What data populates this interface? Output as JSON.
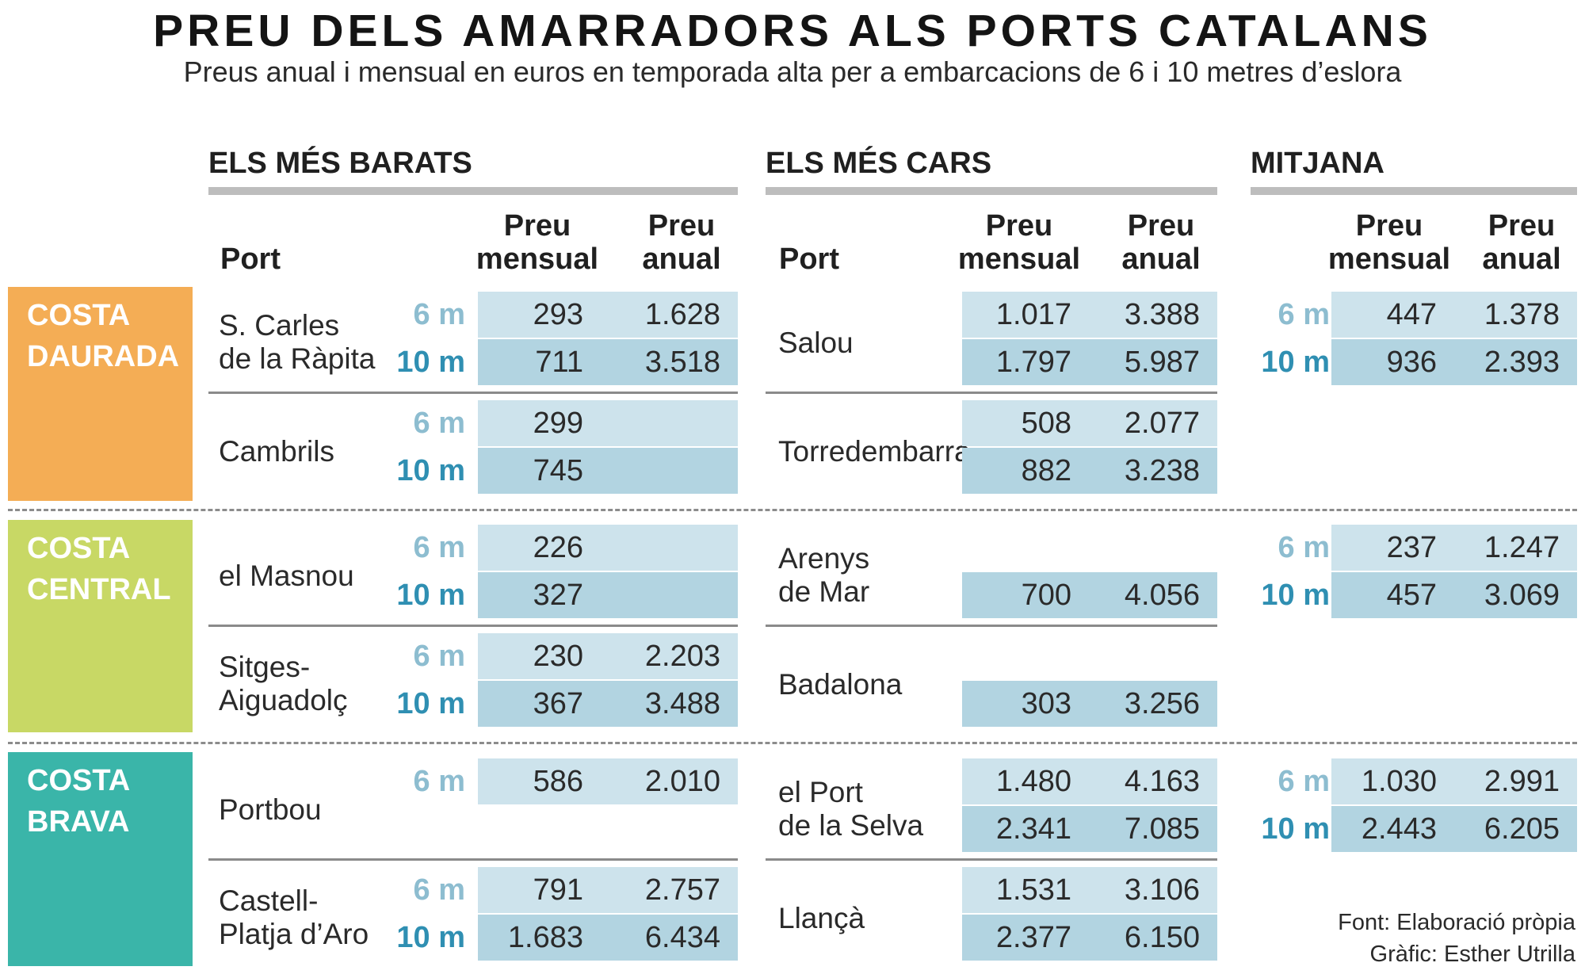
{
  "title": "PREU DELS AMARRADORS ALS PORTS CATALANS",
  "subtitle": "Preus anual i mensual en euros en temporada alta per a embarcacions de 6 i 10 metres d’eslora",
  "sections": {
    "cheapest": "ELS MÉS BARATS",
    "expensive": "ELS MÉS CARS",
    "average": "MITJANA"
  },
  "headers": {
    "port": "Port",
    "monthly_1": "Preu",
    "monthly_2": "mensual",
    "annual_1": "Preu",
    "annual_2": "anual"
  },
  "sizes": {
    "s6": "6 m",
    "s10": "10 m"
  },
  "regions": [
    {
      "name_1": "COSTA",
      "name_2": "DAURADA",
      "color": "#f4ad55"
    },
    {
      "name_1": "COSTA",
      "name_2": "CENTRAL",
      "color": "#c8d865"
    },
    {
      "name_1": "COSTA",
      "name_2": "BRAVA",
      "color": "#3ab5a9"
    }
  ],
  "chart_data": {
    "type": "table",
    "title": "PREU DELS AMARRADORS ALS PORTS CATALANS",
    "subtitle": "Preus anual i mensual en euros en temporada alta per a embarcacions de 6 i 10 metres d’eslora",
    "columns": [
      "Preu mensual",
      "Preu anual"
    ],
    "rows": [
      {
        "region": "COSTA DAURADA",
        "group": "ELS MÉS BARATS",
        "port_1": "S. Carles",
        "port_2": "de la Ràpita",
        "m6": "293",
        "a6": "1.628",
        "m10": "711",
        "a10": "3.518"
      },
      {
        "region": "COSTA DAURADA",
        "group": "ELS MÉS BARATS",
        "port_1": "Cambrils",
        "port_2": "",
        "m6": "299",
        "a6": "",
        "m10": "745",
        "a10": ""
      },
      {
        "region": "COSTA DAURADA",
        "group": "ELS MÉS CARS",
        "port_1": "Salou",
        "port_2": "",
        "m6": "1.017",
        "a6": "3.388",
        "m10": "1.797",
        "a10": "5.987"
      },
      {
        "region": "COSTA DAURADA",
        "group": "ELS MÉS CARS",
        "port_1": "Torredembarra",
        "port_2": "",
        "m6": "508",
        "a6": "2.077",
        "m10": "882",
        "a10": "3.238"
      },
      {
        "region": "COSTA DAURADA",
        "group": "MITJANA",
        "m6": "447",
        "a6": "1.378",
        "m10": "936",
        "a10": "2.393"
      },
      {
        "region": "COSTA CENTRAL",
        "group": "ELS MÉS BARATS",
        "port_1": "el Masnou",
        "port_2": "",
        "m6": "226",
        "a6": "",
        "m10": "327",
        "a10": ""
      },
      {
        "region": "COSTA CENTRAL",
        "group": "ELS MÉS BARATS",
        "port_1": "Sitges-",
        "port_2": "Aiguadolç",
        "m6": "230",
        "a6": "2.203",
        "m10": "367",
        "a10": "3.488"
      },
      {
        "region": "COSTA CENTRAL",
        "group": "ELS MÉS CARS",
        "port_1": "Arenys",
        "port_2": "de Mar",
        "m6": "",
        "a6": "",
        "m10": "700",
        "a10": "4.056"
      },
      {
        "region": "COSTA CENTRAL",
        "group": "ELS MÉS CARS",
        "port_1": "Badalona",
        "port_2": "",
        "m6": "",
        "a6": "",
        "m10": "303",
        "a10": "3.256"
      },
      {
        "region": "COSTA CENTRAL",
        "group": "MITJANA",
        "m6": "237",
        "a6": "1.247",
        "m10": "457",
        "a10": "3.069"
      },
      {
        "region": "COSTA BRAVA",
        "group": "ELS MÉS BARATS",
        "port_1": "Portbou",
        "port_2": "",
        "m6": "586",
        "a6": "2.010",
        "m10": "",
        "a10": ""
      },
      {
        "region": "COSTA BRAVA",
        "group": "ELS MÉS BARATS",
        "port_1": "Castell-",
        "port_2": "Platja d’Aro",
        "m6": "791",
        "a6": "2.757",
        "m10": "1.683",
        "a10": "6.434"
      },
      {
        "region": "COSTA BRAVA",
        "group": "ELS MÉS CARS",
        "port_1": "el Port",
        "port_2": "de la Selva",
        "m6": "1.480",
        "a6": "4.163",
        "m10": "2.341",
        "a10": "7.085"
      },
      {
        "region": "COSTA BRAVA",
        "group": "ELS MÉS CARS",
        "port_1": "Llançà",
        "port_2": "",
        "m6": "1.531",
        "a6": "3.106",
        "m10": "2.377",
        "a10": "6.150"
      },
      {
        "region": "COSTA BRAVA",
        "group": "MITJANA",
        "m6": "1.030",
        "a6": "2.991",
        "m10": "2.443",
        "a10": "6.205"
      }
    ]
  },
  "credits": {
    "source": "Font: Elaboració pròpia",
    "author": "Gràfic: Esther Utrilla"
  }
}
